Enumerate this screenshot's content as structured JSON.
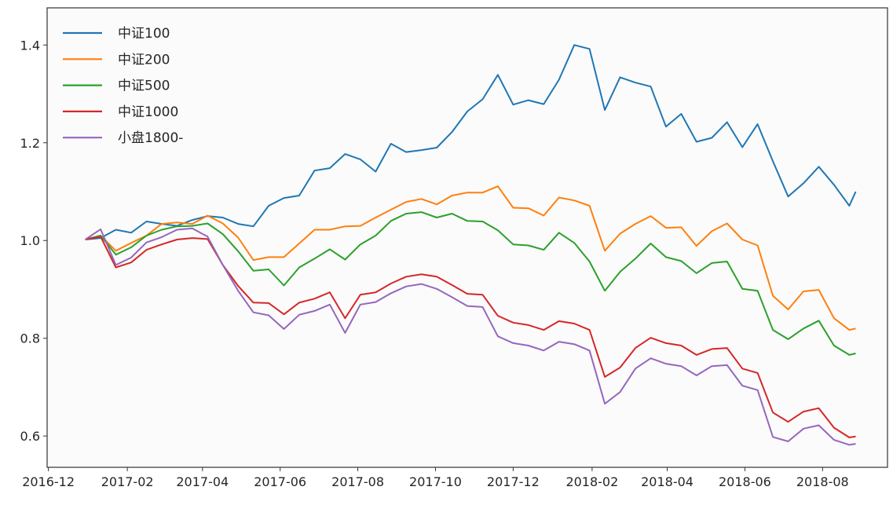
{
  "chart_data": {
    "type": "line",
    "title": "",
    "xlabel": "",
    "ylabel": "",
    "xlim": [
      "2016-11-30",
      "2018-09-21"
    ],
    "ylim": [
      0.536,
      1.476
    ],
    "grid": false,
    "legend_position": "top-left",
    "background_color": "#fbfbfb",
    "x_ticks": [
      "2016-12",
      "2017-02",
      "2017-04",
      "2017-06",
      "2017-08",
      "2017-10",
      "2017-12",
      "2018-02",
      "2018-04",
      "2018-06",
      "2018-08"
    ],
    "y_ticks": [
      0.6,
      0.8,
      1.0,
      1.2,
      1.4
    ],
    "y_tick_labels": [
      "0.6",
      "0.8",
      "1.0",
      "1.2",
      "1.4"
    ],
    "x": [
      "2016-12-30",
      "2017-01-11",
      "2017-01-23",
      "2017-02-04",
      "2017-02-16",
      "2017-02-28",
      "2017-03-12",
      "2017-03-24",
      "2017-04-05",
      "2017-04-17",
      "2017-04-29",
      "2017-05-11",
      "2017-05-23",
      "2017-06-04",
      "2017-06-16",
      "2017-06-28",
      "2017-07-10",
      "2017-07-22",
      "2017-08-03",
      "2017-08-15",
      "2017-08-27",
      "2017-09-08",
      "2017-09-20",
      "2017-10-02",
      "2017-10-14",
      "2017-10-26",
      "2017-11-07",
      "2017-11-19",
      "2017-12-01",
      "2017-12-13",
      "2017-12-25",
      "2018-01-06",
      "2018-01-18",
      "2018-01-30",
      "2018-02-11",
      "2018-02-23",
      "2018-03-07",
      "2018-03-19",
      "2018-03-31",
      "2018-04-12",
      "2018-04-24",
      "2018-05-06",
      "2018-05-18",
      "2018-05-30",
      "2018-06-11",
      "2018-06-23",
      "2018-07-05",
      "2018-07-17",
      "2018-07-29",
      "2018-08-10",
      "2018-08-22",
      "2018-08-27"
    ],
    "series": [
      {
        "name": "中证100",
        "color": "#1f77b4",
        "values": [
          1.002,
          1.005,
          1.022,
          1.016,
          1.039,
          1.034,
          1.03,
          1.042,
          1.05,
          1.047,
          1.034,
          1.029,
          1.071,
          1.087,
          1.092,
          1.143,
          1.148,
          1.177,
          1.166,
          1.141,
          1.198,
          1.181,
          1.185,
          1.19,
          1.222,
          1.264,
          1.289,
          1.339,
          1.278,
          1.287,
          1.279,
          1.329,
          1.4,
          1.392,
          1.267,
          1.334,
          1.323,
          1.315,
          1.233,
          1.259,
          1.202,
          1.21,
          1.242,
          1.191,
          1.238,
          1.162,
          1.09,
          1.117,
          1.151,
          1.114,
          1.071,
          1.1
        ]
      },
      {
        "name": "中证200",
        "color": "#ff7f0e",
        "values": [
          1.002,
          1.01,
          0.979,
          0.995,
          1.01,
          1.034,
          1.037,
          1.034,
          1.051,
          1.035,
          1.006,
          0.96,
          0.966,
          0.966,
          0.994,
          1.022,
          1.022,
          1.029,
          1.03,
          1.047,
          1.063,
          1.079,
          1.085,
          1.074,
          1.092,
          1.098,
          1.098,
          1.111,
          1.067,
          1.066,
          1.051,
          1.088,
          1.082,
          1.071,
          0.979,
          1.014,
          1.034,
          1.05,
          1.026,
          1.027,
          0.989,
          1.019,
          1.035,
          1.002,
          0.99,
          0.887,
          0.859,
          0.896,
          0.899,
          0.841,
          0.817,
          0.82
        ]
      },
      {
        "name": "中证500",
        "color": "#2ca02c",
        "values": [
          1.002,
          1.01,
          0.971,
          0.986,
          1.01,
          1.022,
          1.029,
          1.03,
          1.035,
          1.013,
          0.978,
          0.938,
          0.941,
          0.908,
          0.945,
          0.963,
          0.982,
          0.961,
          0.992,
          1.01,
          1.04,
          1.055,
          1.058,
          1.047,
          1.055,
          1.04,
          1.039,
          1.021,
          0.992,
          0.99,
          0.981,
          1.016,
          0.995,
          0.957,
          0.897,
          0.936,
          0.963,
          0.994,
          0.966,
          0.958,
          0.933,
          0.954,
          0.957,
          0.901,
          0.897,
          0.817,
          0.798,
          0.82,
          0.836,
          0.785,
          0.766,
          0.769
        ]
      },
      {
        "name": "中证1000",
        "color": "#d62728",
        "values": [
          1.002,
          1.008,
          0.945,
          0.955,
          0.981,
          0.992,
          1.002,
          1.005,
          1.003,
          0.95,
          0.907,
          0.873,
          0.872,
          0.849,
          0.873,
          0.881,
          0.894,
          0.841,
          0.889,
          0.894,
          0.912,
          0.926,
          0.931,
          0.926,
          0.909,
          0.891,
          0.889,
          0.846,
          0.832,
          0.827,
          0.817,
          0.835,
          0.83,
          0.817,
          0.721,
          0.74,
          0.78,
          0.801,
          0.79,
          0.785,
          0.766,
          0.778,
          0.78,
          0.738,
          0.729,
          0.648,
          0.629,
          0.65,
          0.657,
          0.617,
          0.597,
          0.599
        ]
      },
      {
        "name": "小盘1800-",
        "color": "#9467bd",
        "values": [
          1.002,
          1.023,
          0.95,
          0.965,
          0.996,
          1.007,
          1.022,
          1.025,
          1.008,
          0.95,
          0.897,
          0.853,
          0.847,
          0.819,
          0.848,
          0.856,
          0.869,
          0.811,
          0.869,
          0.874,
          0.892,
          0.906,
          0.911,
          0.901,
          0.884,
          0.866,
          0.864,
          0.804,
          0.79,
          0.785,
          0.775,
          0.793,
          0.788,
          0.775,
          0.666,
          0.69,
          0.738,
          0.759,
          0.748,
          0.743,
          0.724,
          0.743,
          0.745,
          0.703,
          0.694,
          0.598,
          0.589,
          0.615,
          0.622,
          0.592,
          0.582,
          0.584
        ]
      }
    ]
  }
}
